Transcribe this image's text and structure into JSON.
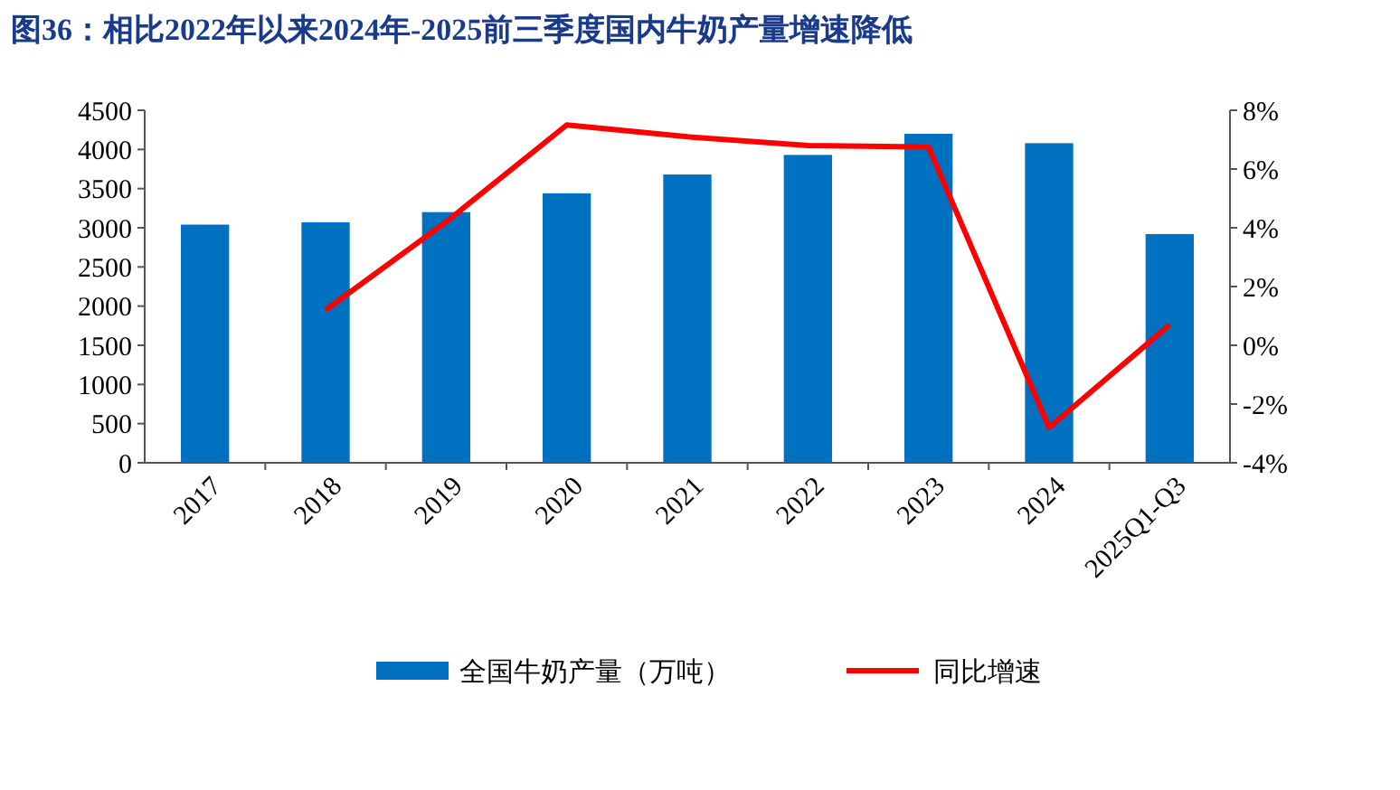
{
  "chart_data": {
    "type": "bar",
    "title": "图36：相比2022年以来2024年-2025前三季度国内牛奶产量增速降低",
    "categories": [
      "2017",
      "2018",
      "2019",
      "2020",
      "2021",
      "2022",
      "2023",
      "2024",
      "2025Q1-Q3"
    ],
    "series": [
      {
        "name": "全国牛奶产量（万吨）",
        "color": "#0070c0",
        "values": [
          3040,
          3070,
          3200,
          3440,
          3680,
          3930,
          4200,
          4080,
          2920
        ]
      },
      {
        "name": "同比增速",
        "type": "line",
        "axis": "y2",
        "color": "#ff0000",
        "values": [
          null,
          1.2,
          4.2,
          7.5,
          7.1,
          6.8,
          6.75,
          -2.8,
          0.7
        ]
      }
    ],
    "ylim": [
      0,
      4500
    ],
    "yticks": [
      0,
      500,
      1000,
      1500,
      2000,
      2500,
      3000,
      3500,
      4000,
      4500
    ],
    "y2lim": [
      -4,
      8
    ],
    "y2ticks": [
      {
        "value": -4,
        "label": "-4%"
      },
      {
        "value": -2,
        "label": "-2%"
      },
      {
        "value": 0,
        "label": "0%"
      },
      {
        "value": 2,
        "label": "2%"
      },
      {
        "value": 4,
        "label": "4%"
      },
      {
        "value": 6,
        "label": "6%"
      },
      {
        "value": 8,
        "label": "8%"
      }
    ],
    "legend": "bottom",
    "grid": false,
    "marker": "none",
    "line_style": "solid"
  }
}
